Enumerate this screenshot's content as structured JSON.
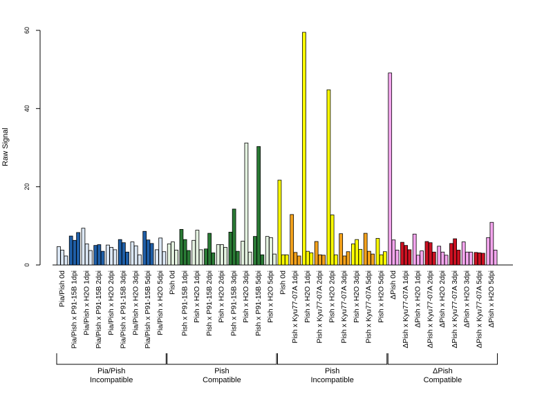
{
  "chart_data": {
    "type": "bar",
    "title": "",
    "xlabel": "",
    "ylabel": "Raw Signal",
    "ylim": [
      0,
      60
    ],
    "yticks": [
      0,
      20,
      40,
      60
    ],
    "grid": false,
    "bars_per_category": 3,
    "colors": {
      "Pia/Pish Incompatible": {
        "light": "#dce8f5",
        "dark": "#1f5fa8"
      },
      "Pish Compatible": {
        "light": "#e4f2e0",
        "dark": "#2a7a35"
      },
      "Pish Incompatible": {
        "light": "#ffff00",
        "dark": "#f4a21c"
      },
      "ΔPish Compatible": {
        "light": "#f4a6ee",
        "dark": "#cc1122"
      }
    },
    "groups": [
      {
        "label_line1": "Pia/Pish",
        "label_line2": "Incompatible"
      },
      {
        "label_line1": "Pish",
        "label_line2": "Compatible"
      },
      {
        "label_line1": "Pish",
        "label_line2": "Incompatible"
      },
      {
        "label_line1": "ΔPish",
        "label_line2": "Compatible"
      }
    ],
    "categories": [
      {
        "label": "Pia/Pish 0d",
        "group": 0,
        "shade": "light",
        "values": [
          4.7,
          3.8,
          2.3
        ]
      },
      {
        "label": "Pia/Pish x P91-15B 1dpi",
        "group": 0,
        "shade": "dark",
        "values": [
          7.4,
          6.3,
          8.3
        ]
      },
      {
        "label": "Pia/Pish x H2O 1dpi",
        "group": 0,
        "shade": "light",
        "values": [
          9.4,
          5.4,
          3.7
        ]
      },
      {
        "label": "Pia/Pish x P91-15B 2dpi",
        "group": 0,
        "shade": "dark",
        "values": [
          5.0,
          5.2,
          3.5
        ]
      },
      {
        "label": "Pia/Pish x H2O 2dpi",
        "group": 0,
        "shade": "light",
        "values": [
          5.1,
          4.5,
          3.9
        ]
      },
      {
        "label": "Pia/Pish x P91-15B 3dpi",
        "group": 0,
        "shade": "dark",
        "values": [
          6.5,
          5.7,
          3.3
        ]
      },
      {
        "label": "Pia/Pish x H2O 3dpi",
        "group": 0,
        "shade": "light",
        "values": [
          5.9,
          4.9,
          2.6
        ]
      },
      {
        "label": "Pia/Pish x P91-15B 5dpi",
        "group": 0,
        "shade": "dark",
        "values": [
          8.6,
          6.4,
          5.5
        ]
      },
      {
        "label": "Pia/Pish x H2O 5dpi",
        "group": 0,
        "shade": "light",
        "values": [
          3.9,
          6.9,
          3.4
        ]
      },
      {
        "label": "Pish 0d",
        "group": 1,
        "shade": "light",
        "values": [
          5.4,
          5.9,
          3.8
        ]
      },
      {
        "label": "Pish x P91-15B 1dpi",
        "group": 1,
        "shade": "dark",
        "values": [
          9.1,
          6.5,
          3.7
        ]
      },
      {
        "label": "Pish x H2O 1dpi",
        "group": 1,
        "shade": "light",
        "values": [
          6.3,
          8.9,
          3.9
        ]
      },
      {
        "label": "Pish x P91-15B 2dpi",
        "group": 1,
        "shade": "dark",
        "values": [
          4.1,
          8.1,
          3.1
        ]
      },
      {
        "label": "Pish x H2O 2dpi",
        "group": 1,
        "shade": "light",
        "values": [
          5.2,
          5.2,
          4.5
        ]
      },
      {
        "label": "Pish x P91-15B 3dpi",
        "group": 1,
        "shade": "dark",
        "values": [
          8.4,
          14.3,
          3.5
        ]
      },
      {
        "label": "Pish x H2O 3dpi",
        "group": 1,
        "shade": "light",
        "values": [
          6.1,
          31.2,
          3.3
        ]
      },
      {
        "label": "Pish x P91-15B 5dpi",
        "group": 1,
        "shade": "dark",
        "values": [
          7.3,
          30.3,
          2.6
        ]
      },
      {
        "label": "Pish x H2O 5dpi",
        "group": 1,
        "shade": "light",
        "values": [
          7.3,
          7.0,
          2.8
        ]
      },
      {
        "label": "Pish 0d",
        "group": 2,
        "shade": "light",
        "values": [
          21.7,
          2.6,
          2.6
        ]
      },
      {
        "label": "Pish x Kyu77-07A 1dpi",
        "group": 2,
        "shade": "dark",
        "values": [
          12.9,
          3.2,
          2.3
        ]
      },
      {
        "label": "Pish x H2O 1dpi",
        "group": 2,
        "shade": "light",
        "values": [
          59.5,
          3.5,
          3.1
        ]
      },
      {
        "label": "Pish x Kyu77-07A 2dpi",
        "group": 2,
        "shade": "dark",
        "values": [
          6.0,
          2.6,
          2.5
        ]
      },
      {
        "label": "Pish x H2O 2dpi",
        "group": 2,
        "shade": "light",
        "values": [
          44.8,
          12.8,
          2.6
        ]
      },
      {
        "label": "Pish x Kyu77-07A 3dpi",
        "group": 2,
        "shade": "dark",
        "values": [
          8.0,
          2.3,
          3.4
        ]
      },
      {
        "label": "Pish x H2O 3dpi",
        "group": 2,
        "shade": "light",
        "values": [
          5.4,
          6.5,
          4.0
        ]
      },
      {
        "label": "Pish x Kyu77-07A 5dpi",
        "group": 2,
        "shade": "dark",
        "values": [
          8.1,
          3.5,
          2.8
        ]
      },
      {
        "label": "Pish x H2O 5dpi",
        "group": 2,
        "shade": "light",
        "values": [
          6.8,
          2.6,
          3.4
        ]
      },
      {
        "label": "ΔPish 0d",
        "group": 3,
        "shade": "light",
        "values": [
          49.1,
          6.4,
          3.8
        ]
      },
      {
        "label": "ΔPish x Kyu77-07A 1dpi",
        "group": 3,
        "shade": "dark",
        "values": [
          5.8,
          5.0,
          3.9
        ]
      },
      {
        "label": "ΔPish x H2O 1dpi",
        "group": 3,
        "shade": "light",
        "values": [
          7.9,
          2.5,
          3.6
        ]
      },
      {
        "label": "ΔPish x Kyu77-07A 2dpi",
        "group": 3,
        "shade": "dark",
        "values": [
          6.0,
          5.7,
          3.3
        ]
      },
      {
        "label": "ΔPish x H2O 2dpi",
        "group": 3,
        "shade": "light",
        "values": [
          4.8,
          3.3,
          2.5
        ]
      },
      {
        "label": "ΔPish x Kyu77-07A 3dpi",
        "group": 3,
        "shade": "dark",
        "values": [
          5.5,
          6.7,
          3.8
        ]
      },
      {
        "label": "ΔPish x H2O 3dpi",
        "group": 3,
        "shade": "light",
        "values": [
          5.9,
          3.3,
          3.3
        ]
      },
      {
        "label": "ΔPish x Kyu77-07A 5dpi",
        "group": 3,
        "shade": "dark",
        "values": [
          3.2,
          3.1,
          3.0
        ]
      },
      {
        "label": "ΔPish x H2O 5dpi",
        "group": 3,
        "shade": "light",
        "values": [
          7.0,
          10.9,
          3.8
        ]
      }
    ]
  }
}
